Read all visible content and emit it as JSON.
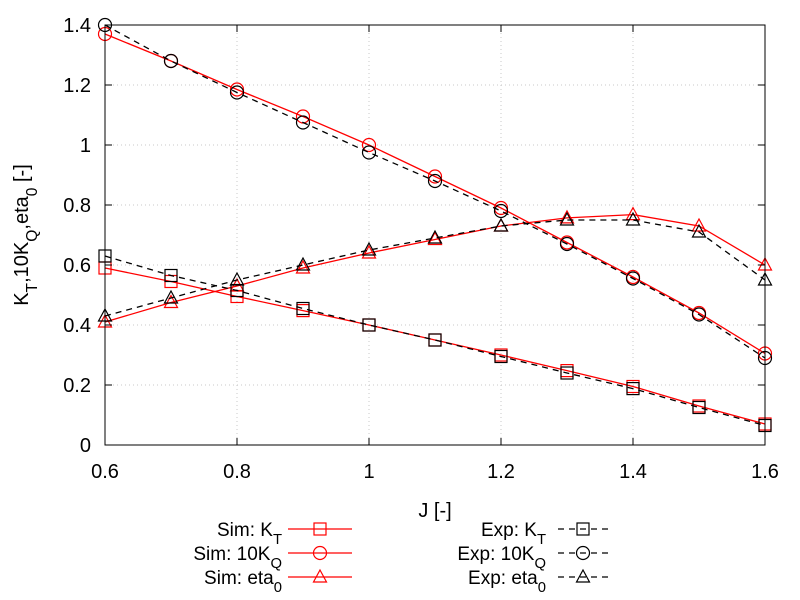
{
  "chart_data": {
    "type": "line",
    "xlabel": "J [-]",
    "ylabel": {
      "parts": [
        {
          "t": "K",
          "s": ""
        },
        {
          "t": "T",
          "s": "sub"
        },
        {
          "t": ",10K",
          "s": ""
        },
        {
          "t": "Q",
          "s": "sub"
        },
        {
          "t": ",eta",
          "s": ""
        },
        {
          "t": "0",
          "s": "sub"
        },
        {
          "t": " [-]",
          "s": ""
        }
      ]
    },
    "xlim": [
      0.6,
      1.6
    ],
    "ylim": [
      0,
      1.4
    ],
    "xticks": [
      "0.6",
      "0.8",
      "1",
      "1.2",
      "1.4",
      "1.6"
    ],
    "yticks": [
      "0",
      "0.2",
      "0.4",
      "0.6",
      "0.8",
      "1",
      "1.2",
      "1.4"
    ],
    "grid": true,
    "legend_position": "bottom",
    "x": [
      0.6,
      0.7,
      0.8,
      0.9,
      1.0,
      1.1,
      1.2,
      1.3,
      1.4,
      1.5,
      1.6
    ],
    "series": [
      {
        "label": [
          {
            "t": "Sim: K",
            "s": ""
          },
          {
            "t": "T",
            "s": "sub"
          }
        ],
        "color": "#ff0000",
        "dash": "solid",
        "marker": "square",
        "values": [
          0.59,
          0.545,
          0.495,
          0.448,
          0.4,
          0.35,
          0.3,
          0.248,
          0.195,
          0.13,
          0.07
        ]
      },
      {
        "label": [
          {
            "t": "Sim: 10K",
            "s": ""
          },
          {
            "t": "Q",
            "s": "sub"
          }
        ],
        "color": "#ff0000",
        "dash": "solid",
        "marker": "circle",
        "values": [
          1.37,
          1.28,
          1.185,
          1.095,
          1.0,
          0.895,
          0.79,
          0.675,
          0.56,
          0.44,
          0.305
        ]
      },
      {
        "label": [
          {
            "t": "Sim: eta",
            "s": ""
          },
          {
            "t": "0",
            "s": "sub"
          }
        ],
        "color": "#ff0000",
        "dash": "solid",
        "marker": "triangle",
        "values": [
          0.41,
          0.475,
          0.53,
          0.59,
          0.64,
          0.685,
          0.73,
          0.757,
          0.768,
          0.73,
          0.6
        ]
      },
      {
        "label": [
          {
            "t": "Exp: K",
            "s": ""
          },
          {
            "t": "T",
            "s": "sub"
          }
        ],
        "color": "#000000",
        "dash": "dashed",
        "marker": "square",
        "values": [
          0.63,
          0.565,
          0.515,
          0.455,
          0.4,
          0.35,
          0.295,
          0.24,
          0.188,
          0.125,
          0.065
        ]
      },
      {
        "label": [
          {
            "t": "Exp: 10K",
            "s": ""
          },
          {
            "t": "Q",
            "s": "sub"
          }
        ],
        "color": "#000000",
        "dash": "dashed",
        "marker": "circle",
        "values": [
          1.4,
          1.28,
          1.175,
          1.075,
          0.975,
          0.88,
          0.78,
          0.67,
          0.555,
          0.435,
          0.29
        ]
      },
      {
        "label": [
          {
            "t": "Exp: eta",
            "s": ""
          },
          {
            "t": "0",
            "s": "sub"
          }
        ],
        "color": "#000000",
        "dash": "dashed",
        "marker": "triangle",
        "values": [
          0.43,
          0.49,
          0.55,
          0.6,
          0.65,
          0.69,
          0.73,
          0.75,
          0.75,
          0.71,
          0.55
        ]
      }
    ]
  }
}
